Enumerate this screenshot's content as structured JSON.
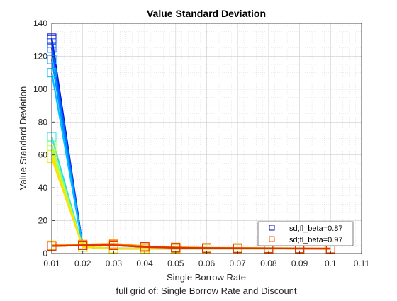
{
  "chart_data": {
    "type": "line",
    "title": "Value Standard Deviation",
    "xlabel": "Single Borrow Rate",
    "ylabel": "Value Standard Deviation",
    "subtitle": "full grid of: Single Borrow Rate and Discount",
    "xlim": [
      0.01,
      0.11
    ],
    "ylim": [
      0,
      140
    ],
    "xticks": [
      "0.01",
      "0.02",
      "0.03",
      "0.04",
      "0.05",
      "0.06",
      "0.07",
      "0.08",
      "0.09",
      "0.1",
      "0.11"
    ],
    "yticks": [
      "0",
      "20",
      "40",
      "60",
      "80",
      "100",
      "120",
      "140"
    ],
    "grid": true,
    "minor_grid": true,
    "x": [
      0.01,
      0.02,
      0.03,
      0.04,
      0.05,
      0.06,
      0.07,
      0.08,
      0.09,
      0.1
    ],
    "series": [
      {
        "name": "sd;fl_beta=0.87",
        "color": "#0000b3",
        "values": [
          131,
          4,
          3,
          3,
          3,
          3,
          3,
          3,
          3,
          3
        ]
      },
      {
        "color": "#0010d9",
        "values": [
          130,
          4,
          3,
          3,
          3,
          3,
          3,
          3,
          3,
          3
        ]
      },
      {
        "color": "#0030ff",
        "values": [
          128,
          4,
          3,
          3,
          3,
          3,
          3,
          3,
          3,
          3
        ]
      },
      {
        "color": "#0060ff",
        "values": [
          125,
          4,
          3,
          3,
          3,
          3,
          3,
          3,
          3,
          3
        ]
      },
      {
        "color": "#0090ff",
        "values": [
          118,
          4,
          3,
          3,
          3,
          3,
          3,
          3,
          3,
          3
        ]
      },
      {
        "color": "#00c0ff",
        "values": [
          110,
          4,
          3,
          3,
          3,
          3,
          3,
          3,
          3,
          3
        ]
      },
      {
        "color": "#30e0e0",
        "values": [
          71,
          4,
          3,
          3,
          3,
          3,
          3,
          3,
          3,
          3
        ]
      },
      {
        "color": "#80ff80",
        "values": [
          66,
          4,
          3,
          3,
          3,
          3,
          3,
          3,
          3,
          3
        ]
      },
      {
        "color": "#c0ff40",
        "values": [
          63,
          4,
          3,
          3,
          3,
          3,
          3,
          3,
          3,
          3
        ]
      },
      {
        "color": "#e8f000",
        "values": [
          60,
          4,
          3,
          3,
          3,
          3,
          3,
          3,
          3,
          3
        ]
      },
      {
        "color": "#ffe000",
        "values": [
          58,
          4,
          3,
          3,
          3,
          3,
          3,
          3,
          3,
          3
        ]
      },
      {
        "color": "#ffd000",
        "values": [
          5,
          5,
          5,
          4,
          3.5,
          3.4,
          3.3,
          3.2,
          3.1,
          3.0
        ]
      },
      {
        "color": "#ffa000",
        "values": [
          5,
          5.5,
          6,
          4.5,
          3.8,
          3.5,
          3.4,
          3.3,
          3.2,
          3.1
        ]
      },
      {
        "color": "#ff7000",
        "values": [
          4.5,
          5,
          5.5,
          4.2,
          3.6,
          3.4,
          3.3,
          3.2,
          3.1,
          3.0
        ]
      },
      {
        "name": "sd;fl_beta=0.97",
        "color": "#ff5000",
        "values": [
          4.5,
          5,
          5,
          4,
          3.5,
          3.3,
          3.2,
          3.1,
          3.0,
          2.9
        ]
      },
      {
        "color": "#e03000",
        "values": [
          4.5,
          5,
          5,
          4,
          3.5,
          3.3,
          3.2,
          3.1,
          3.0,
          2.9
        ]
      }
    ],
    "legend": [
      {
        "label": "sd;fl_beta=0.87",
        "color": "#0000b3"
      },
      {
        "label": "sd;fl_beta=0.97",
        "color": "#ff5000"
      }
    ],
    "legend_position": "bottom-right",
    "marker": "square"
  }
}
